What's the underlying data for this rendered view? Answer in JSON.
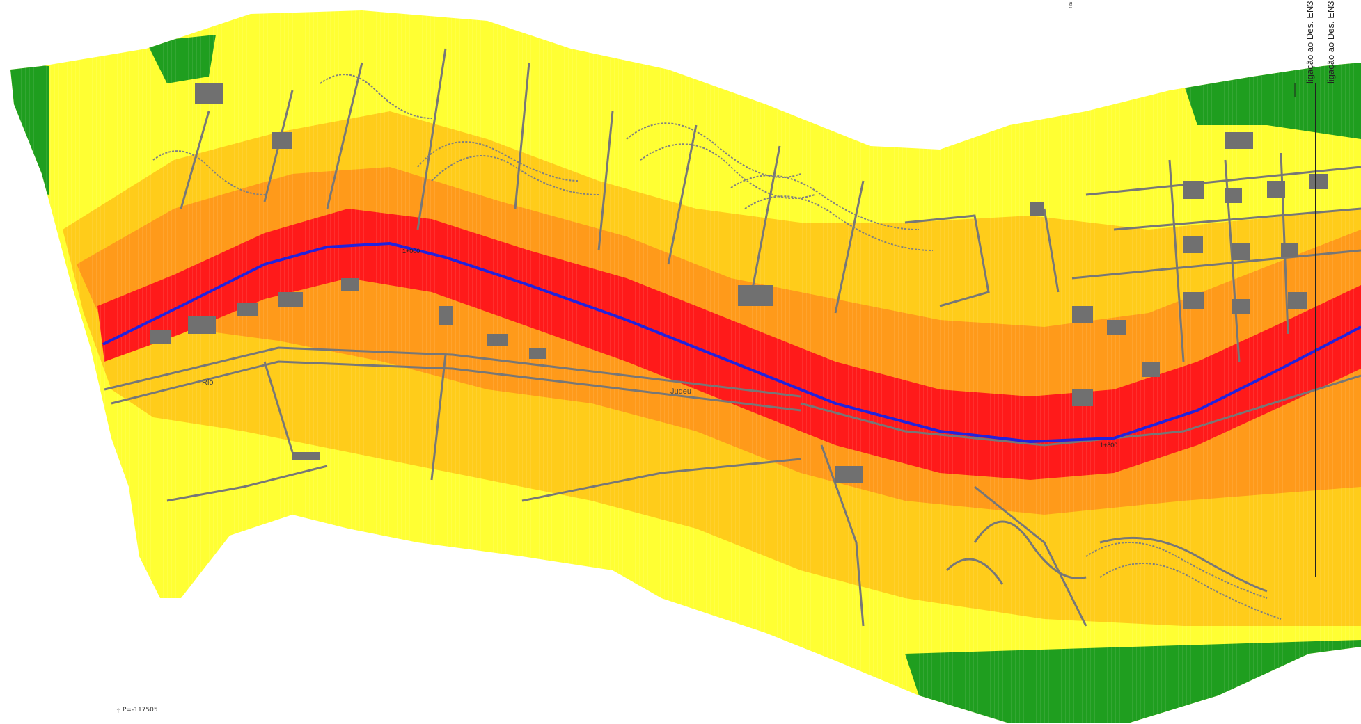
{
  "map": {
    "zone_colors": {
      "green": "#1f9e1f",
      "yellow": "#ffff33",
      "light_orange": "#ffcc1a",
      "orange": "#ff9a1a",
      "red": "#ff1a1a",
      "road_axis": "#2222dd",
      "streets": "#777777",
      "buildings": "#707070"
    },
    "labels": {
      "chainage_1": "1+000",
      "chainage_2": "1+800",
      "street_left": "Rio",
      "street_mid": "Judeu"
    },
    "sidebar": {
      "title_1": "ligação ao Des. EN3",
      "title_2": "ligação ao Des. EN3",
      "top_mark": "ns"
    },
    "coordinate": "P=-117505"
  }
}
